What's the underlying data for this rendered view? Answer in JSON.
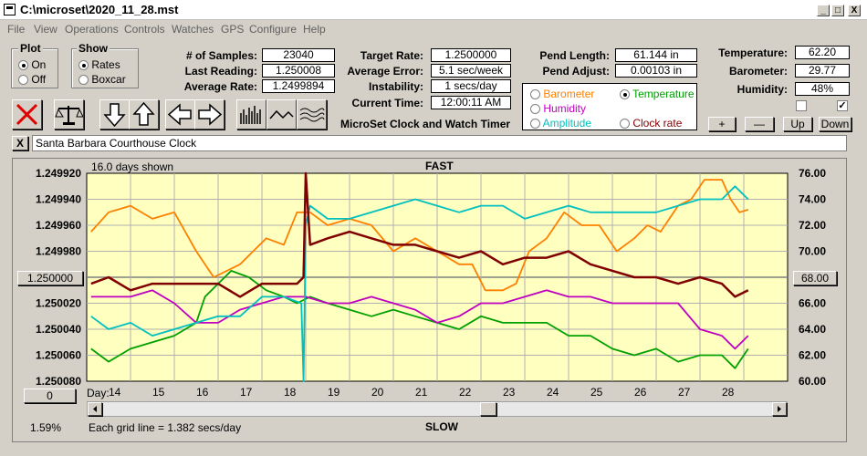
{
  "window": {
    "title": "C:\\microset\\2020_11_28.mst",
    "min": "_",
    "max": "□",
    "close": "X"
  },
  "menu": [
    "File",
    "View",
    "Operations",
    "Controls",
    "Watches",
    "GPS",
    "Configure",
    "Help"
  ],
  "plot": {
    "legend": "Plot",
    "options": [
      {
        "label": "On",
        "selected": true
      },
      {
        "label": "Off",
        "selected": false
      }
    ]
  },
  "show": {
    "legend": "Show",
    "options": [
      {
        "label": "Rates",
        "selected": true
      },
      {
        "label": "Boxcar",
        "selected": false
      }
    ]
  },
  "stats": [
    {
      "label": "# of Samples:",
      "value": "23040"
    },
    {
      "label": "Last Reading:",
      "value": "1.250008"
    },
    {
      "label": "Average Rate:",
      "value": "1.2499894"
    }
  ],
  "timer": [
    {
      "label": "Target Rate:",
      "value": "1.2500000"
    },
    {
      "label": "Average Error:",
      "value": "5.1 sec/week"
    },
    {
      "label": "Instability:",
      "value": "1 secs/day"
    },
    {
      "label": "Current Time:",
      "value": "12:00:11 AM"
    }
  ],
  "app_name": "MicroSet Clock and Watch Timer",
  "pendulum": [
    {
      "label": "Pend Length:",
      "value": "61.144 in"
    },
    {
      "label": "Pend Adjust:",
      "value": "0.00103 in"
    }
  ],
  "series_select": [
    {
      "label": "Barometer",
      "color": "#ff8000",
      "selected": false
    },
    {
      "label": "Temperature",
      "color": "#00a000",
      "selected": true
    },
    {
      "label": "Humidity",
      "color": "#c000c0",
      "selected": false
    },
    {
      "label": "Clock rate",
      "color": "#800000",
      "selected": false
    },
    {
      "label": "Amplitude",
      "color": "#00c0c0",
      "selected": false
    }
  ],
  "env": [
    {
      "label": "Temperature:",
      "value": "62.20"
    },
    {
      "label": "Barometer:",
      "value": "29.77"
    },
    {
      "label": "Humidity:",
      "value": "48%"
    }
  ],
  "adjust_buttons": [
    "+",
    "—",
    "Up",
    "Down"
  ],
  "clock_name": "Santa Barbara Courthouse Clock",
  "close_x": "X",
  "chart_data": {
    "type": "line",
    "title_top": "FAST",
    "title_bottom": "SLOW",
    "days_shown": "16.0 days shown",
    "grid_note": "Each grid line = 1.382 secs/day",
    "x_label": "Day:",
    "x_ticks": [
      "14",
      "15",
      "16",
      "17",
      "18",
      "19",
      "20",
      "21",
      "22",
      "23",
      "24",
      "25",
      "26",
      "27",
      "28"
    ],
    "x_range": [
      13.5,
      29.5
    ],
    "left_ticks": [
      "1.249920",
      "1.249940",
      "1.249960",
      "1.249980",
      "1.250000",
      "1.250020",
      "1.250040",
      "1.250060",
      "1.250080"
    ],
    "right_ticks": [
      "76.00",
      "74.00",
      "72.00",
      "70.00",
      "68.00",
      "66.00",
      "64.00",
      "62.00",
      "60.00"
    ],
    "right_range": [
      60,
      76
    ],
    "left_center_button": "1.250000",
    "right_center_button": "68.00",
    "bottom_left_button": "0",
    "bottom_left_pct": "1.59%",
    "series": [
      {
        "name": "Barometer",
        "color": "#ff8000",
        "x": [
          13.6,
          14.0,
          14.5,
          15.0,
          15.5,
          16.0,
          16.4,
          17.0,
          17.3,
          17.6,
          18.0,
          18.3,
          18.6,
          19.0,
          19.5,
          20.0,
          20.5,
          21.0,
          21.5,
          22.0,
          22.3,
          22.6,
          23.0,
          23.3,
          23.6,
          24.0,
          24.4,
          24.8,
          25.2,
          25.6,
          26.0,
          26.3,
          26.6,
          27.0,
          27.3,
          27.6,
          28.0,
          28.2,
          28.4,
          28.6
        ],
        "y": [
          71.5,
          73,
          73.5,
          72.5,
          73,
          70,
          68,
          69,
          70,
          71,
          70.5,
          73,
          73,
          72,
          72.5,
          72,
          70,
          71,
          70,
          69,
          69,
          67,
          67,
          67.5,
          70,
          71,
          73,
          72,
          72,
          70,
          71,
          72,
          71.5,
          73.5,
          74,
          75.5,
          75.5,
          74,
          73,
          73.2
        ]
      },
      {
        "name": "Temperature",
        "color": "#00a000",
        "x": [
          13.6,
          14.0,
          14.5,
          15.0,
          15.5,
          16.0,
          16.2,
          16.5,
          16.8,
          17.2,
          17.6,
          18.0,
          18.3,
          18.6,
          19.0,
          19.5,
          20.0,
          20.5,
          21.0,
          21.5,
          22.0,
          22.5,
          23.0,
          23.5,
          24.0,
          24.5,
          25.0,
          25.5,
          26.0,
          26.5,
          27.0,
          27.5,
          28.0,
          28.3,
          28.6
        ],
        "y": [
          62.5,
          61.5,
          62.5,
          63,
          63.5,
          64.5,
          66.5,
          67.5,
          68.5,
          68,
          67,
          66.5,
          66,
          66.5,
          66,
          65.5,
          65,
          65.5,
          65,
          64.5,
          64,
          65,
          64.5,
          64.5,
          64.5,
          63.5,
          63.5,
          62.5,
          62,
          62.5,
          61.5,
          62,
          62,
          61,
          62.5
        ]
      },
      {
        "name": "Humidity",
        "color": "#c000c0",
        "x": [
          13.6,
          14.0,
          14.5,
          15.0,
          15.5,
          16.0,
          16.5,
          17.0,
          17.5,
          18.0,
          18.5,
          19.0,
          19.5,
          20.0,
          20.5,
          21.0,
          21.5,
          22.0,
          22.5,
          23.0,
          23.5,
          24.0,
          24.5,
          25.0,
          25.5,
          26.0,
          26.5,
          27.0,
          27.5,
          28.0,
          28.3,
          28.6
        ],
        "y": [
          66.5,
          66.5,
          66.5,
          67,
          66,
          64.5,
          64.5,
          65.5,
          66,
          66.5,
          66.5,
          66,
          66,
          66.5,
          66,
          65.5,
          64.5,
          65,
          66,
          66,
          66.5,
          67,
          66.5,
          66.5,
          66,
          66,
          66,
          66,
          64,
          63.5,
          62.5,
          63.5
        ]
      },
      {
        "name": "Amplitude",
        "color": "#00c0c0",
        "x": [
          13.6,
          14.0,
          14.5,
          15.0,
          15.5,
          16.0,
          16.5,
          17.0,
          17.5,
          18.0,
          18.4,
          18.45,
          18.5,
          18.6,
          19.0,
          19.5,
          20.0,
          20.5,
          21.0,
          21.5,
          22.0,
          22.5,
          23.0,
          23.5,
          24.0,
          24.5,
          25.0,
          25.5,
          26.0,
          26.5,
          27.0,
          27.5,
          28.0,
          28.3,
          28.6
        ],
        "y": [
          65,
          64,
          64.5,
          63.5,
          64,
          64.5,
          65,
          65,
          66.5,
          66.5,
          66,
          60,
          72,
          73.5,
          72.5,
          72.5,
          73,
          73.5,
          74,
          73.5,
          73,
          73.5,
          73.5,
          72.5,
          73,
          73.5,
          73,
          73,
          73,
          73,
          73.5,
          74,
          74,
          75,
          74
        ]
      },
      {
        "name": "Clock rate",
        "color": "#800000",
        "x": [
          13.6,
          14.0,
          14.5,
          15.0,
          15.5,
          16.0,
          16.5,
          17.0,
          17.5,
          18.0,
          18.3,
          18.45,
          18.5,
          18.6,
          19.0,
          19.5,
          20.0,
          20.5,
          21.0,
          21.5,
          22.0,
          22.5,
          23.0,
          23.5,
          24.0,
          24.5,
          25.0,
          25.5,
          26.0,
          26.5,
          27.0,
          27.5,
          28.0,
          28.3,
          28.6
        ],
        "y": [
          67.5,
          68,
          67,
          67.5,
          67.5,
          67.5,
          67.5,
          66.5,
          67.5,
          67.5,
          67.5,
          68,
          76,
          70.5,
          71,
          71.5,
          71,
          70.5,
          70.5,
          70,
          69.5,
          70,
          69,
          69.5,
          69.5,
          70,
          69,
          68.5,
          68,
          68,
          67.5,
          68,
          67.5,
          66.5,
          67
        ]
      }
    ]
  }
}
